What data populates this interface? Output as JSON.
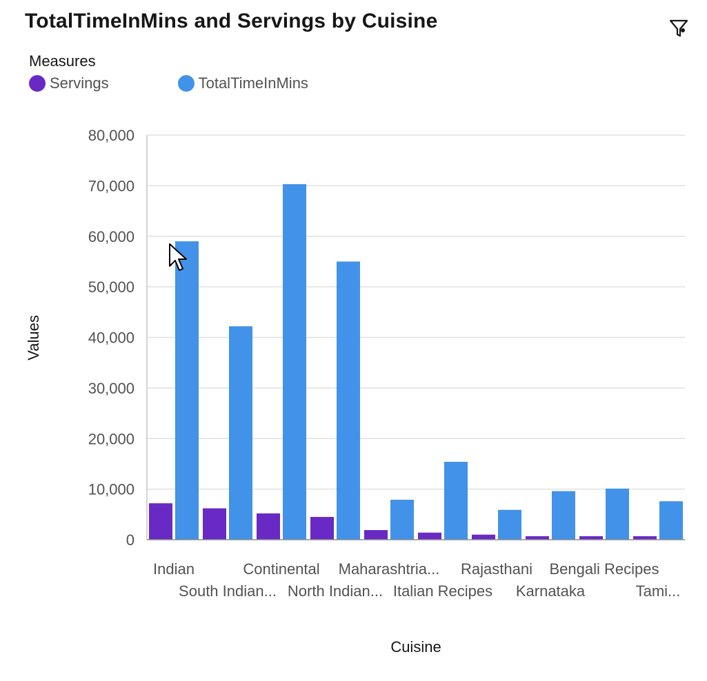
{
  "title": "TotalTimeInMins and Servings by Cuisine",
  "legend": {
    "title": "Measures",
    "items": [
      {
        "label": "Servings",
        "color": "#6929c4"
      },
      {
        "label": "TotalTimeInMins",
        "color": "#4192e8"
      }
    ]
  },
  "toolbar": {
    "filter_icon": "filter-icon"
  },
  "chart_data": {
    "type": "bar",
    "xlabel": "Cuisine",
    "ylabel": "Values",
    "ylim": [
      0,
      80000
    ],
    "yticks": [
      0,
      10000,
      20000,
      30000,
      40000,
      50000,
      60000,
      70000,
      80000
    ],
    "ytick_labels": [
      "0",
      "10,000",
      "20,000",
      "30,000",
      "40,000",
      "50,000",
      "60,000",
      "70,000",
      "80,000"
    ],
    "grid": true,
    "legend_position": "top-left",
    "categories": [
      "Indian",
      "South Indian...",
      "Continental",
      "North Indian...",
      "Maharashtria...",
      "Italian Recipes",
      "Rajasthani",
      "Karnataka",
      "Bengali Recipes",
      "Tami..."
    ],
    "series": [
      {
        "name": "Servings",
        "color": "#6929c4",
        "values": [
          7200,
          6200,
          5200,
          4500,
          1900,
          1400,
          1000,
          700,
          700,
          700
        ]
      },
      {
        "name": "TotalTimeInMins",
        "color": "#4192e8",
        "values": [
          59000,
          42200,
          70300,
          55000,
          7900,
          15400,
          5900,
          9600,
          10100,
          7600
        ]
      }
    ]
  }
}
